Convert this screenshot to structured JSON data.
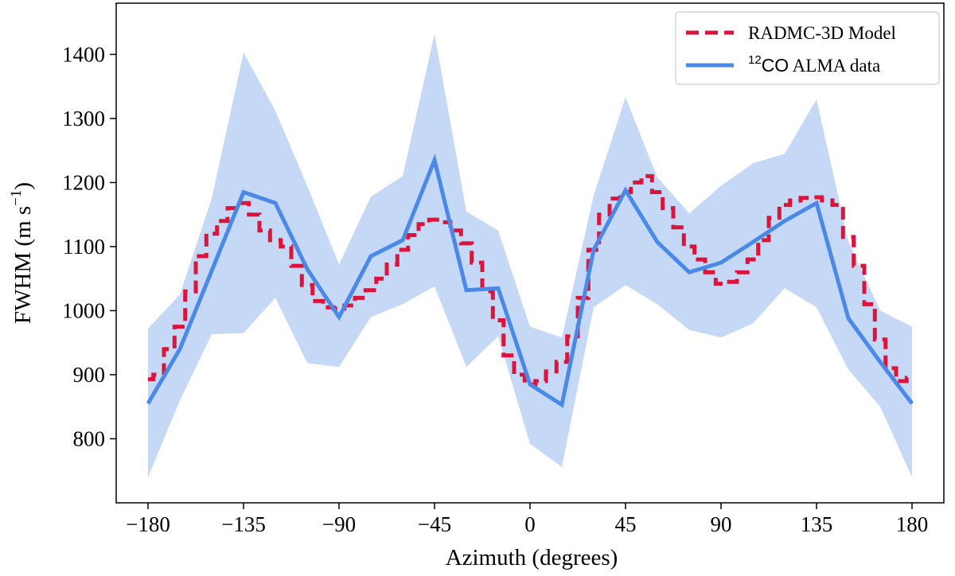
{
  "chart_data": {
    "type": "line",
    "xlabel": "Azimuth (degrees)",
    "ylabel": "FWHM (m s⁻¹)",
    "xlim": [
      -195,
      195
    ],
    "ylim": [
      700,
      1480
    ],
    "xticks": [
      -180,
      -135,
      -90,
      -45,
      0,
      45,
      90,
      135,
      180
    ],
    "xtick_labels": [
      "−180",
      "−135",
      "−90",
      "−45",
      "0",
      "45",
      "90",
      "135",
      "180"
    ],
    "yticks": [
      800,
      900,
      1000,
      1100,
      1200,
      1300,
      1400
    ],
    "ytick_labels": [
      "800",
      "900",
      "1000",
      "1100",
      "1200",
      "1300",
      "1400"
    ],
    "grid": false,
    "legend_position": "top-right",
    "colors": {
      "model": "#dc143c",
      "data": "#4a89e8",
      "band": "#c5d9f7"
    },
    "series": [
      {
        "name": "RADMC-3D Model",
        "style": "dashed",
        "x": [
          -180,
          -175,
          -170,
          -165,
          -160,
          -155,
          -150,
          -145,
          -140,
          -135,
          -130,
          -125,
          -120,
          -115,
          -110,
          -105,
          -100,
          -95,
          -90,
          -85,
          -80,
          -75,
          -70,
          -65,
          -60,
          -55,
          -50,
          -45,
          -40,
          -35,
          -30,
          -25,
          -20,
          -15,
          -10,
          -5,
          0,
          5,
          10,
          15,
          20,
          25,
          30,
          35,
          40,
          45,
          50,
          55,
          60,
          65,
          70,
          75,
          80,
          85,
          90,
          95,
          100,
          105,
          110,
          115,
          120,
          125,
          130,
          135,
          140,
          145,
          150,
          155,
          160,
          165,
          170,
          175,
          180
        ],
        "y": [
          893,
          900,
          940,
          975,
          1030,
          1085,
          1120,
          1140,
          1160,
          1168,
          1150,
          1125,
          1110,
          1100,
          1070,
          1040,
          1015,
          1005,
          1003,
          1008,
          1020,
          1032,
          1050,
          1072,
          1095,
          1118,
          1135,
          1142,
          1138,
          1125,
          1105,
          1075,
          1030,
          985,
          930,
          900,
          885,
          890,
          905,
          920,
          960,
          1020,
          1095,
          1150,
          1175,
          1185,
          1200,
          1210,
          1185,
          1160,
          1130,
          1100,
          1080,
          1060,
          1042,
          1045,
          1060,
          1080,
          1110,
          1145,
          1165,
          1172,
          1176,
          1177,
          1172,
          1165,
          1115,
          1070,
          1010,
          955,
          910,
          890,
          895
        ]
      },
      {
        "name": "12CO ALMA data",
        "style": "solid",
        "x": [
          -180,
          -165,
          -150,
          -135,
          -120,
          -105,
          -90,
          -75,
          -60,
          -45,
          -30,
          -15,
          0,
          15,
          30,
          45,
          60,
          75,
          90,
          105,
          120,
          135,
          150,
          165,
          180
        ],
        "y": [
          855,
          940,
          1062,
          1185,
          1168,
          1065,
          990,
          1085,
          1110,
          1235,
          1032,
          1035,
          885,
          853,
          1095,
          1188,
          1107,
          1060,
          1075,
          1107,
          1140,
          1168,
          988,
          920,
          855
        ],
        "band_low": [
          740,
          860,
          963,
          965,
          1020,
          918,
          912,
          990,
          1010,
          1038,
          912,
          960,
          792,
          756,
          1005,
          1040,
          1010,
          970,
          958,
          980,
          1035,
          1005,
          908,
          850,
          740
        ],
        "band_high": [
          972,
          1025,
          1175,
          1403,
          1312,
          1195,
          1072,
          1178,
          1210,
          1432,
          1155,
          1125,
          975,
          958,
          1180,
          1333,
          1208,
          1152,
          1195,
          1230,
          1245,
          1330,
          1108,
          1000,
          975
        ]
      }
    ]
  },
  "legend": {
    "model_label": "RADMC-3D Model",
    "data_sup": "12",
    "data_iso": "CO",
    "data_rest": " ALMA data"
  },
  "axes": {
    "xlabel": "Azimuth (degrees)",
    "ylabel_main": "FWHM (m s",
    "ylabel_sup": "−1",
    "ylabel_close": ")"
  }
}
